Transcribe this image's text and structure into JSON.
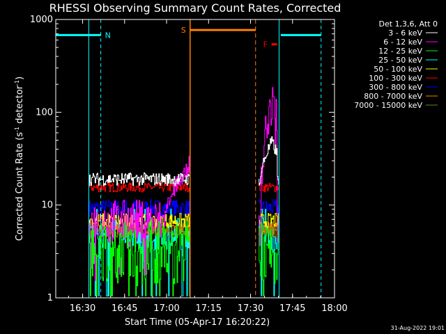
{
  "chart_data": {
    "type": "line",
    "title": "RHESSI Observing Summary Count Rates, Corrected",
    "xlabel": "Start Time (05-Apr-17 16:20:22)",
    "ylabel_main": "Corrected Count Rate (s",
    "ylabel_sup1": "-1",
    "ylabel_mid": " detector",
    "ylabel_sup2": "-1",
    "ylabel_end": ")",
    "yscale": "log",
    "ylim": [
      1,
      1000
    ],
    "xlim_min": [
      20.4,
      120
    ],
    "xtick_values": [
      30,
      45,
      60,
      75,
      90,
      105,
      120
    ],
    "xticks": [
      "16:30",
      "16:45",
      "17:00",
      "17:15",
      "17:30",
      "17:45",
      "18:00"
    ],
    "ytick_values": [
      1,
      10,
      100,
      1000
    ],
    "yticks": [
      "1",
      "10",
      "100",
      "1000"
    ],
    "legend_header": "Det 1,3,6, Att 0",
    "legend_position": "right",
    "series": [
      {
        "name": "3 - 6 keV",
        "color": "#ffffff",
        "level": 19,
        "jitter": 0.07
      },
      {
        "name": "6 - 12 keV",
        "color": "#ff00ff",
        "level": 6.5,
        "jitter": 0.25
      },
      {
        "name": "12 - 25 keV",
        "color": "#00ff00",
        "level": 3,
        "jitter": 0.35
      },
      {
        "name": "25 - 50 keV",
        "color": "#00ffff",
        "level": 5,
        "jitter": 0.18
      },
      {
        "name": "50 - 100 keV",
        "color": "#ffff00",
        "level": 6.8,
        "jitter": 0.08
      },
      {
        "name": "100 - 300 keV",
        "color": "#ff0000",
        "level": 15.5,
        "jitter": 0.05
      },
      {
        "name": "300 - 800 keV",
        "color": "#0000ff",
        "level": 9.3,
        "jitter": 0.09
      },
      {
        "name": "800 - 7000 keV",
        "color": "#ff8000",
        "level": 5.6,
        "jitter": 0.07
      },
      {
        "name": "7000 - 15000 keV",
        "color": "#808000",
        "level": 5.2,
        "jitter": 0.07
      }
    ],
    "data_segments": [
      [
        32.2,
        68.4
      ],
      [
        92.8,
        100.2
      ]
    ],
    "markers": {
      "N": {
        "label": "N",
        "color": "#00ffff",
        "bars": [
          [
            20.4,
            36.5
          ],
          [
            100.8,
            115.2
          ]
        ],
        "bar_level": 680,
        "lines": [
          20.4,
          32.2,
          100.2
        ],
        "dashed": [
          36.5,
          115.2
        ]
      },
      "S": {
        "label": "S",
        "color": "#ff8000",
        "bar": [
          68.4,
          91.8
        ],
        "bar_level": 770,
        "line": 68.4,
        "dashed": 91.8
      },
      "F": {
        "label": "F",
        "color": "#ff0000",
        "bar": [
          97.5,
          99.5
        ],
        "bar_level": 540
      }
    },
    "flare_peak": {
      "time": 97.5,
      "value": 130,
      "series": "6 - 12 keV"
    }
  },
  "timestamp": "31-Aug-2022 19:01"
}
